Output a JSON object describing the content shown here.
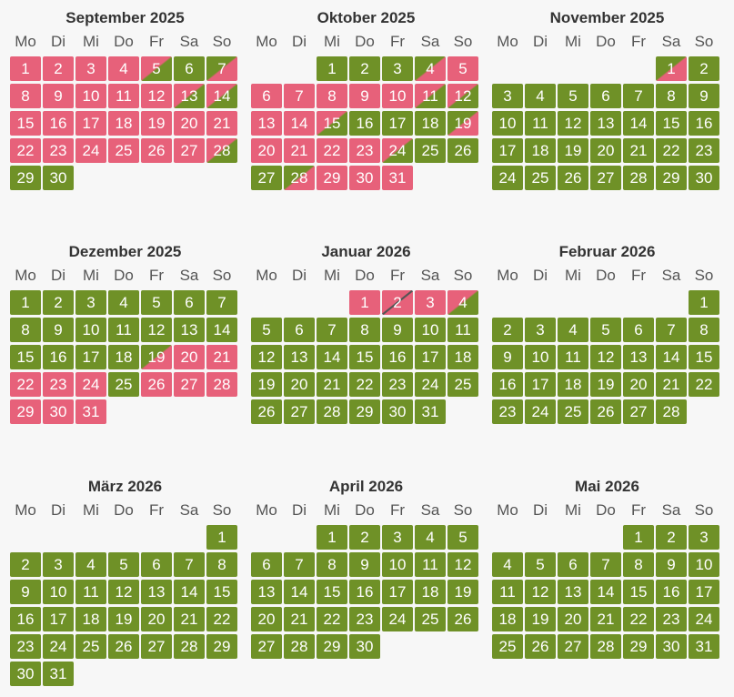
{
  "weekdays": [
    "Mo",
    "Di",
    "Mi",
    "Do",
    "Fr",
    "Sa",
    "So"
  ],
  "colors": {
    "occupied": "#e7617a",
    "free": "#6f9127",
    "divider": "#555555"
  },
  "months": [
    {
      "title": "September 2025",
      "offset": 0,
      "days": 30,
      "states": {
        "1": "occupied",
        "2": "occupied",
        "3": "occupied",
        "4": "occupied",
        "5": "departure",
        "6": "free",
        "7": "arrival",
        "8": "occupied",
        "9": "occupied",
        "10": "occupied",
        "11": "occupied",
        "12": "occupied",
        "13": "departure",
        "14": "departure",
        "15": "occupied",
        "16": "occupied",
        "17": "occupied",
        "18": "occupied",
        "19": "occupied",
        "20": "occupied",
        "21": "occupied",
        "22": "occupied",
        "23": "occupied",
        "24": "occupied",
        "25": "occupied",
        "26": "occupied",
        "27": "occupied",
        "28": "departure"
      }
    },
    {
      "title": "Oktober 2025",
      "offset": 2,
      "days": 31,
      "states": {
        "4": "arrival",
        "5": "occupied",
        "6": "occupied",
        "7": "occupied",
        "8": "occupied",
        "9": "occupied",
        "10": "occupied",
        "11": "departure",
        "12": "departure",
        "13": "occupied",
        "14": "occupied",
        "15": "departure",
        "19": "arrival",
        "20": "occupied",
        "21": "occupied",
        "22": "occupied",
        "23": "occupied",
        "24": "departure",
        "28": "arrival",
        "29": "occupied",
        "30": "occupied",
        "31": "occupied"
      }
    },
    {
      "title": "November 2025",
      "offset": 5,
      "days": 30,
      "states": {
        "1": "arrival"
      }
    },
    {
      "title": "Dezember 2025",
      "offset": 0,
      "days": 31,
      "states": {
        "19": "arrival",
        "20": "occupied",
        "21": "occupied",
        "22": "occupied",
        "23": "occupied",
        "24": "occupied",
        "26": "occupied",
        "27": "occupied",
        "28": "occupied",
        "29": "occupied",
        "30": "occupied",
        "31": "occupied"
      }
    },
    {
      "title": "Januar 2026",
      "offset": 3,
      "days": 31,
      "states": {
        "1": "occupied",
        "2": "change",
        "3": "occupied",
        "4": "departure"
      }
    },
    {
      "title": "Februar 2026",
      "offset": 6,
      "days": 28,
      "states": {}
    },
    {
      "title": "März 2026",
      "offset": 6,
      "days": 31,
      "states": {}
    },
    {
      "title": "April 2026",
      "offset": 2,
      "days": 30,
      "states": {}
    },
    {
      "title": "Mai 2026",
      "offset": 4,
      "days": 31,
      "states": {}
    }
  ]
}
